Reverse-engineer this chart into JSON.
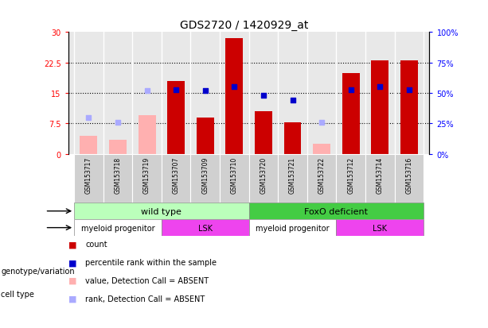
{
  "title": "GDS2720 / 1420929_at",
  "samples": [
    "GSM153717",
    "GSM153718",
    "GSM153719",
    "GSM153707",
    "GSM153709",
    "GSM153710",
    "GSM153720",
    "GSM153721",
    "GSM153722",
    "GSM153712",
    "GSM153714",
    "GSM153716"
  ],
  "count_values": [
    null,
    null,
    null,
    18.0,
    9.0,
    28.5,
    10.5,
    7.8,
    null,
    20.0,
    23.0,
    23.0
  ],
  "count_absent": [
    4.5,
    3.5,
    9.5,
    null,
    null,
    null,
    null,
    null,
    2.5,
    null,
    null,
    null
  ],
  "percentile_rank_pct": [
    null,
    null,
    null,
    53,
    52,
    55,
    48,
    44,
    null,
    53,
    55,
    53
  ],
  "rank_absent_pct": [
    30,
    26,
    52,
    null,
    null,
    null,
    null,
    null,
    26,
    null,
    null,
    null
  ],
  "ylim_left": [
    0,
    30
  ],
  "ylim_right": [
    0,
    100
  ],
  "yticks_left": [
    0,
    7.5,
    15,
    22.5,
    30
  ],
  "ytick_labels_left": [
    "0",
    "7.5",
    "15",
    "22.5",
    "30"
  ],
  "yticks_right": [
    0,
    25,
    50,
    75,
    100
  ],
  "ytick_labels_right": [
    "0%",
    "25%",
    "50%",
    "75%",
    "100%"
  ],
  "bar_color_red": "#cc0000",
  "bar_color_pink": "#ffb0b0",
  "dot_color_blue": "#0000cc",
  "dot_color_lightblue": "#aaaaff",
  "genotype_wildtype_label": "wild type",
  "genotype_foxo_label": "FoxO deficient",
  "genotype_wildtype_color": "#bbffbb",
  "genotype_foxo_color": "#44cc44",
  "celltype_myeloid_color": "#ffffff",
  "celltype_lsk_color": "#ee44ee",
  "celltype_myeloid_label": "myeloid progenitor",
  "celltype_lsk_label": "LSK",
  "legend_labels": [
    "count",
    "percentile rank within the sample",
    "value, Detection Call = ABSENT",
    "rank, Detection Call = ABSENT"
  ],
  "legend_colors": [
    "#cc0000",
    "#0000cc",
    "#ffb0b0",
    "#aaaaff"
  ],
  "grid_dotted_values": [
    7.5,
    15,
    22.5
  ],
  "n_wt": 6,
  "n_foxo": 6,
  "myeloid_wt_count": 3,
  "lsk_wt_count": 3,
  "myeloid_foxo_count": 3,
  "lsk_foxo_count": 3
}
